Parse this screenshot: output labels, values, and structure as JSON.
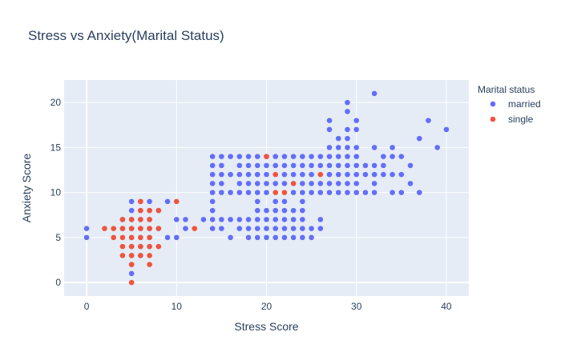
{
  "chart_data": {
    "type": "scatter",
    "title": "Stress vs Anxiety(Marital Status)",
    "xlabel": "Stress Score",
    "ylabel": "Anxiety Score",
    "xlim": [
      -2.5,
      42.5
    ],
    "ylim": [
      -1.5,
      22.5
    ],
    "xticks": [
      0,
      10,
      20,
      30,
      40
    ],
    "yticks": [
      0,
      5,
      10,
      15,
      20
    ],
    "grid": true,
    "legend": {
      "title": "Marital status",
      "position": "top-right"
    },
    "series": [
      {
        "name": "married",
        "color": "#636efa",
        "points": [
          [
            0,
            5
          ],
          [
            0,
            6
          ],
          [
            4,
            6
          ],
          [
            4,
            7
          ],
          [
            5,
            1
          ],
          [
            5,
            2
          ],
          [
            5,
            3
          ],
          [
            5,
            4
          ],
          [
            5,
            5
          ],
          [
            5,
            6
          ],
          [
            5,
            7
          ],
          [
            5,
            8
          ],
          [
            5,
            9
          ],
          [
            6,
            3
          ],
          [
            6,
            4
          ],
          [
            6,
            5
          ],
          [
            6,
            6
          ],
          [
            6,
            7
          ],
          [
            6,
            8
          ],
          [
            6,
            9
          ],
          [
            7,
            4
          ],
          [
            7,
            5
          ],
          [
            7,
            6
          ],
          [
            7,
            7
          ],
          [
            7,
            8
          ],
          [
            7,
            9
          ],
          [
            8,
            6
          ],
          [
            8,
            8
          ],
          [
            9,
            5
          ],
          [
            9,
            9
          ],
          [
            10,
            5
          ],
          [
            10,
            7
          ],
          [
            11,
            6
          ],
          [
            11,
            7
          ],
          [
            13,
            7
          ],
          [
            14,
            6
          ],
          [
            14,
            7
          ],
          [
            14,
            8
          ],
          [
            14,
            9
          ],
          [
            14,
            10
          ],
          [
            14,
            11
          ],
          [
            14,
            12
          ],
          [
            14,
            13
          ],
          [
            14,
            14
          ],
          [
            15,
            6
          ],
          [
            15,
            7
          ],
          [
            15,
            10
          ],
          [
            15,
            11
          ],
          [
            15,
            12
          ],
          [
            15,
            13
          ],
          [
            15,
            14
          ],
          [
            16,
            5
          ],
          [
            16,
            7
          ],
          [
            16,
            10
          ],
          [
            16,
            12
          ],
          [
            16,
            14
          ],
          [
            17,
            6
          ],
          [
            17,
            7
          ],
          [
            17,
            10
          ],
          [
            17,
            11
          ],
          [
            17,
            12
          ],
          [
            17,
            13
          ],
          [
            17,
            14
          ],
          [
            18,
            5
          ],
          [
            18,
            6
          ],
          [
            18,
            7
          ],
          [
            18,
            10
          ],
          [
            18,
            11
          ],
          [
            18,
            12
          ],
          [
            18,
            13
          ],
          [
            18,
            14
          ],
          [
            19,
            5
          ],
          [
            19,
            6
          ],
          [
            19,
            7
          ],
          [
            19,
            8
          ],
          [
            19,
            9
          ],
          [
            19,
            10
          ],
          [
            19,
            11
          ],
          [
            19,
            12
          ],
          [
            19,
            13
          ],
          [
            19,
            14
          ],
          [
            20,
            5
          ],
          [
            20,
            6
          ],
          [
            20,
            7
          ],
          [
            20,
            8
          ],
          [
            20,
            10
          ],
          [
            20,
            11
          ],
          [
            20,
            12
          ],
          [
            20,
            13
          ],
          [
            20,
            14
          ],
          [
            21,
            5
          ],
          [
            21,
            6
          ],
          [
            21,
            7
          ],
          [
            21,
            8
          ],
          [
            21,
            9
          ],
          [
            21,
            11
          ],
          [
            21,
            13
          ],
          [
            21,
            14
          ],
          [
            22,
            5
          ],
          [
            22,
            6
          ],
          [
            22,
            7
          ],
          [
            22,
            8
          ],
          [
            22,
            9
          ],
          [
            22,
            11
          ],
          [
            22,
            12
          ],
          [
            22,
            13
          ],
          [
            22,
            14
          ],
          [
            23,
            5
          ],
          [
            23,
            6
          ],
          [
            23,
            7
          ],
          [
            23,
            8
          ],
          [
            23,
            10
          ],
          [
            23,
            12
          ],
          [
            23,
            13
          ],
          [
            23,
            14
          ],
          [
            24,
            5
          ],
          [
            24,
            6
          ],
          [
            24,
            7
          ],
          [
            24,
            8
          ],
          [
            24,
            9
          ],
          [
            24,
            10
          ],
          [
            24,
            11
          ],
          [
            24,
            12
          ],
          [
            24,
            13
          ],
          [
            24,
            14
          ],
          [
            25,
            5
          ],
          [
            25,
            6
          ],
          [
            25,
            10
          ],
          [
            25,
            11
          ],
          [
            25,
            12
          ],
          [
            25,
            13
          ],
          [
            25,
            14
          ],
          [
            26,
            6
          ],
          [
            26,
            7
          ],
          [
            26,
            10
          ],
          [
            26,
            11
          ],
          [
            26,
            13
          ],
          [
            26,
            14
          ],
          [
            27,
            10
          ],
          [
            27,
            11
          ],
          [
            27,
            12
          ],
          [
            27,
            13
          ],
          [
            27,
            14
          ],
          [
            27,
            15
          ],
          [
            27,
            17
          ],
          [
            27,
            18
          ],
          [
            28,
            10
          ],
          [
            28,
            11
          ],
          [
            28,
            12
          ],
          [
            28,
            13
          ],
          [
            28,
            14
          ],
          [
            28,
            15
          ],
          [
            28,
            16
          ],
          [
            29,
            10
          ],
          [
            29,
            11
          ],
          [
            29,
            12
          ],
          [
            29,
            13
          ],
          [
            29,
            14
          ],
          [
            29,
            15
          ],
          [
            29,
            16
          ],
          [
            29,
            17
          ],
          [
            29,
            19
          ],
          [
            29,
            20
          ],
          [
            30,
            10
          ],
          [
            30,
            11
          ],
          [
            30,
            12
          ],
          [
            30,
            13
          ],
          [
            30,
            14
          ],
          [
            30,
            15
          ],
          [
            30,
            17
          ],
          [
            30,
            18
          ],
          [
            31,
            10
          ],
          [
            31,
            12
          ],
          [
            31,
            13
          ],
          [
            32,
            10
          ],
          [
            32,
            11
          ],
          [
            32,
            12
          ],
          [
            32,
            13
          ],
          [
            32,
            15
          ],
          [
            32,
            21
          ],
          [
            33,
            12
          ],
          [
            33,
            13
          ],
          [
            33,
            14
          ],
          [
            34,
            10
          ],
          [
            34,
            12
          ],
          [
            34,
            14
          ],
          [
            34,
            15
          ],
          [
            35,
            10
          ],
          [
            35,
            12
          ],
          [
            35,
            14
          ],
          [
            36,
            11
          ],
          [
            36,
            13
          ],
          [
            37,
            10
          ],
          [
            37,
            16
          ],
          [
            38,
            18
          ],
          [
            39,
            15
          ],
          [
            40,
            17
          ]
        ]
      },
      {
        "name": "single",
        "color": "#ef553b",
        "points": [
          [
            2,
            6
          ],
          [
            3,
            5
          ],
          [
            3,
            6
          ],
          [
            4,
            3
          ],
          [
            4,
            4
          ],
          [
            4,
            5
          ],
          [
            4,
            6
          ],
          [
            4,
            7
          ],
          [
            5,
            0
          ],
          [
            5,
            2
          ],
          [
            5,
            3
          ],
          [
            5,
            4
          ],
          [
            5,
            5
          ],
          [
            5,
            6
          ],
          [
            5,
            7
          ],
          [
            6,
            3
          ],
          [
            6,
            4
          ],
          [
            6,
            5
          ],
          [
            6,
            6
          ],
          [
            6,
            7
          ],
          [
            6,
            8
          ],
          [
            6,
            9
          ],
          [
            7,
            2
          ],
          [
            7,
            3
          ],
          [
            7,
            4
          ],
          [
            7,
            5
          ],
          [
            7,
            6
          ],
          [
            7,
            7
          ],
          [
            7,
            8
          ],
          [
            8,
            4
          ],
          [
            8,
            6
          ],
          [
            8,
            8
          ],
          [
            10,
            9
          ],
          [
            12,
            6
          ],
          [
            20,
            14
          ],
          [
            21,
            10
          ],
          [
            21,
            12
          ],
          [
            22,
            10
          ],
          [
            23,
            11
          ],
          [
            26,
            12
          ]
        ]
      }
    ]
  }
}
